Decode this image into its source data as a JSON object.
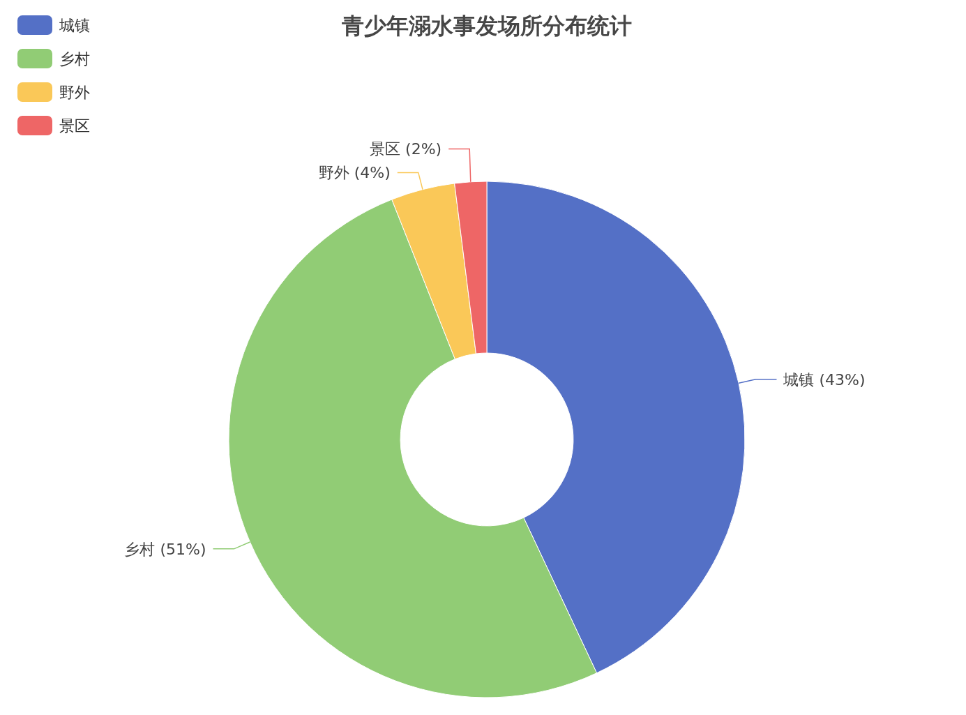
{
  "chart_data": {
    "type": "donut",
    "title": "青少年溺水事发场所分布统计",
    "categories": [
      "城镇",
      "乡村",
      "野外",
      "景区"
    ],
    "values": [
      43,
      51,
      4,
      2
    ],
    "colors": [
      "#5470c6",
      "#91cc75",
      "#fac858",
      "#ee6666"
    ],
    "value_labels": [
      "城镇 (43%)",
      "乡村 (51%)",
      "野外 (4%)",
      "景区 (2%)"
    ],
    "legend": "top left"
  }
}
